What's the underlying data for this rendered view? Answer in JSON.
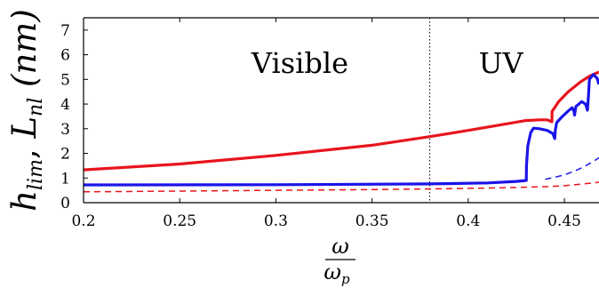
{
  "chart_data": {
    "type": "line",
    "xlabel_num": "ω",
    "xlabel_den": "ω",
    "xlabel_den_sub": "p",
    "ylabel": "h_lim, L_nl (nm)",
    "ylabel_parts": {
      "h": "h",
      "h_sub": "lim",
      "sep": ",  ",
      "L": "L",
      "L_sub": "nl",
      "unit": " (nm)"
    },
    "xlim": [
      0.2,
      0.468
    ],
    "ylim": [
      0,
      7.5
    ],
    "x_ticks": [
      0.2,
      0.25,
      0.3,
      0.35,
      0.4,
      0.45
    ],
    "x_tick_labels": [
      "0.2",
      "0.25",
      "0.3",
      "0.35",
      "0.4",
      "0.45"
    ],
    "y_ticks": [
      0,
      1,
      2,
      3,
      4,
      5,
      6,
      7
    ],
    "y_tick_labels": [
      "0",
      "1",
      "2",
      "3",
      "4",
      "5",
      "6",
      "7"
    ],
    "annotations": [
      {
        "text": "Visible",
        "x": 0.3125,
        "y": 5.7
      },
      {
        "text": "UV",
        "x": 0.417,
        "y": 5.7
      }
    ],
    "boundary_x": 0.38,
    "series": [
      {
        "color": "#e8141c",
        "style": "solid",
        "x": [
          0.2,
          0.25,
          0.3,
          0.35,
          0.38,
          0.4,
          0.42,
          0.43,
          0.437,
          0.441,
          0.4435,
          0.4436,
          0.447,
          0.452,
          0.458,
          0.463,
          0.468
        ],
        "y": [
          1.33,
          1.57,
          1.92,
          2.33,
          2.68,
          2.93,
          3.2,
          3.33,
          3.36,
          3.36,
          3.28,
          3.7,
          4.1,
          4.5,
          4.88,
          5.13,
          5.3
        ]
      },
      {
        "color": "#1a14e8",
        "style": "solid",
        "x": [
          0.2,
          0.3,
          0.38,
          0.41,
          0.425,
          0.4302,
          0.4303,
          0.431,
          0.4325,
          0.434,
          0.437,
          0.441,
          0.444,
          0.445,
          0.4453,
          0.446,
          0.449,
          0.452,
          0.454,
          0.455,
          0.4553,
          0.456,
          0.459,
          0.461,
          0.462,
          0.4625,
          0.463,
          0.465,
          0.467,
          0.468
        ],
        "y": [
          0.72,
          0.73,
          0.76,
          0.8,
          0.86,
          0.9,
          1.5,
          2.3,
          2.85,
          3.02,
          3.0,
          2.93,
          2.8,
          2.6,
          2.95,
          3.25,
          3.5,
          3.72,
          3.85,
          3.7,
          3.55,
          3.9,
          4.1,
          4.0,
          3.75,
          4.3,
          5.0,
          5.2,
          5.05,
          4.8
        ]
      },
      {
        "color": "#1a14e8",
        "style": "dashed",
        "x": [
          0.44,
          0.445,
          0.45,
          0.455,
          0.46,
          0.465,
          0.468
        ],
        "y": [
          0.95,
          1.03,
          1.13,
          1.27,
          1.45,
          1.67,
          1.82
        ]
      },
      {
        "color": "#e8141c",
        "style": "dashed",
        "x": [
          0.2,
          0.25,
          0.3,
          0.35,
          0.38,
          0.4,
          0.42,
          0.44,
          0.45,
          0.46,
          0.468
        ],
        "y": [
          0.44,
          0.47,
          0.5,
          0.53,
          0.56,
          0.58,
          0.61,
          0.65,
          0.69,
          0.76,
          0.83
        ]
      }
    ]
  }
}
